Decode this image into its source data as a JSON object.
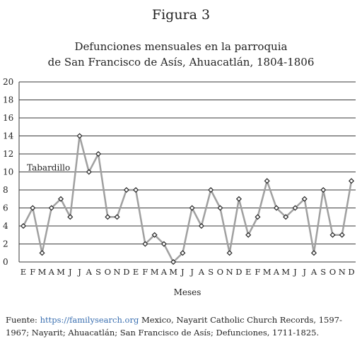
{
  "figure_label": "Figura 3",
  "title_line1": "Defunciones mensuales en la parroquia",
  "title_line2": "de San Francisco de Asís, Ahuacatlán, 1804-1806",
  "caption": {
    "prefix": "Fuente: ",
    "link": "https://familysearch.org",
    "suffix": " Mexico, Nayarit Catholic Church Records, 1597-1967; Nayarit; Ahuacatlán; San Francisco de Asís; Defunciones, 1711-1825."
  },
  "chart_data": {
    "type": "line",
    "title": "Defunciones mensuales en la parroquia de San Francisco de Asís, Ahuacatlán, 1804-1806",
    "xlabel": "Meses",
    "ylabel": "",
    "ylim": [
      0,
      20
    ],
    "yticks": [
      0,
      2,
      4,
      6,
      8,
      10,
      12,
      14,
      16,
      18,
      20
    ],
    "grid": true,
    "categories": [
      "E",
      "F",
      "M",
      "A",
      "M",
      "J",
      "J",
      "A",
      "S",
      "O",
      "N",
      "D",
      "E",
      "F",
      "M",
      "A",
      "M",
      "J",
      "J",
      "A",
      "S",
      "O",
      "N",
      "D",
      "E",
      "F",
      "M",
      "A",
      "M",
      "J",
      "J",
      "A",
      "S",
      "O",
      "N",
      "D"
    ],
    "series": [
      {
        "values": [
          4,
          6,
          1,
          6,
          7,
          5,
          14,
          10,
          12,
          5,
          5,
          8,
          8,
          2,
          3,
          2,
          0,
          1,
          6,
          4,
          8,
          6,
          1,
          7,
          3,
          5,
          9,
          6,
          5,
          6,
          7,
          1,
          8,
          3,
          3,
          9
        ]
      }
    ],
    "annotations": [
      {
        "text": "Tabardillo",
        "x_index": 6,
        "y": 10
      }
    ],
    "line_color": "#a0a0a0",
    "marker_color": "#222222"
  }
}
